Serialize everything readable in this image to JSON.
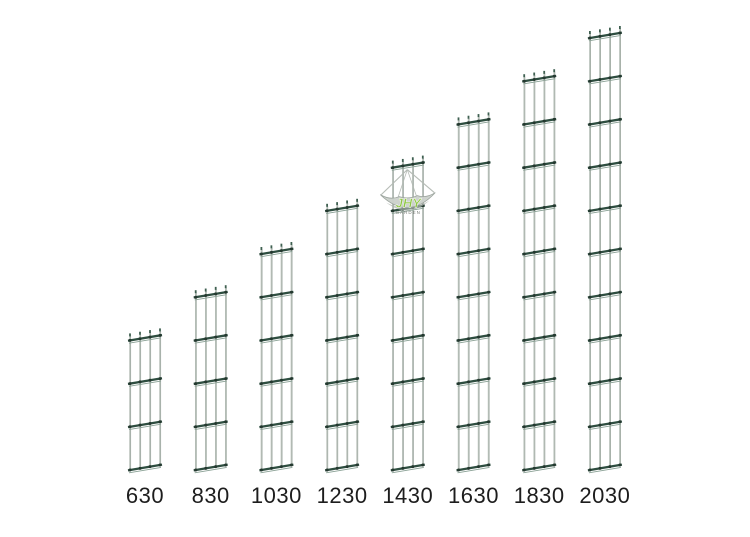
{
  "figure": {
    "type": "product-size-diagram",
    "description": "Eight double-wire garden fence panels of increasing height with size labels in millimetres",
    "colors": {
      "background": "#ffffff",
      "bar": "#2e4e40",
      "bar_companion": "#8aa195",
      "wire": "#b3bcb5",
      "wire_edge": "#98a39b",
      "tip_cap": "#3f6051",
      "weld_dot": "#24382f",
      "label": "#1d1d1d"
    },
    "panels": [
      {
        "label": "630",
        "height_mm": 630,
        "sections": 3
      },
      {
        "label": "830",
        "height_mm": 830,
        "sections": 4
      },
      {
        "label": "1030",
        "height_mm": 1030,
        "sections": 5
      },
      {
        "label": "1230",
        "height_mm": 1230,
        "sections": 6
      },
      {
        "label": "1430",
        "height_mm": 1430,
        "sections": 7
      },
      {
        "label": "1630",
        "height_mm": 1630,
        "sections": 8
      },
      {
        "label": "1830",
        "height_mm": 1830,
        "sections": 9
      },
      {
        "label": "2030",
        "height_mm": 2030,
        "sections": 10
      }
    ],
    "watermark": {
      "attached_to_panel": "1430",
      "main_text": "JHY",
      "sub_text": "GARDEN",
      "main_color": "#8bc63e",
      "sub_color": "#70766f",
      "basket_fill": "#cdd2cd",
      "basket_shade": "#aeb5ae",
      "basket_edge": "#9aa39c",
      "cord_color": "#b4bab4"
    }
  }
}
